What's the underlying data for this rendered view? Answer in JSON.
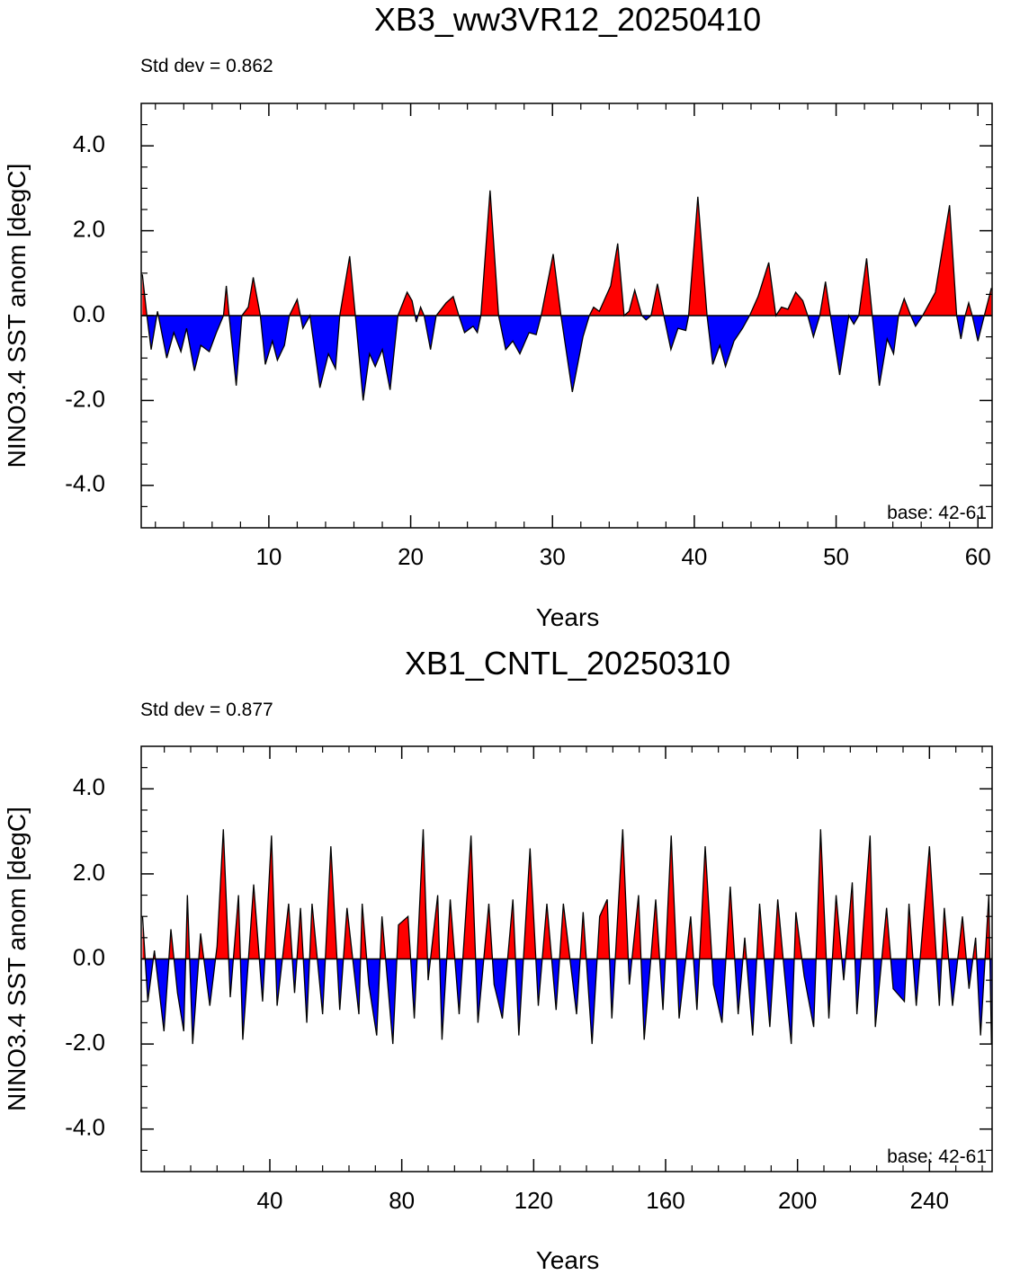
{
  "chart_data": [
    {
      "type": "area",
      "title": "XB3_ww3VR12_20250410",
      "subtitle": "Std dev = 0.862",
      "annotation": "base: 42-61",
      "x_label": "Years",
      "y_label": "NINO3.4 SST anom [degC]",
      "color_above": "#ff0000",
      "color_below": "#0000ff",
      "line_color": "#000000",
      "x": [
        1.08,
        1.4,
        1.7,
        2.15,
        2.8,
        3.3,
        3.8,
        4.2,
        4.75,
        5.2,
        5.8,
        6.3,
        6.8,
        7.0,
        7.2,
        7.7,
        8.1,
        8.55,
        8.9,
        9.4,
        9.75,
        10.25,
        10.6,
        11.1,
        11.45,
        12.0,
        12.4,
        12.9,
        13.6,
        14.2,
        14.7,
        15.0,
        15.7,
        16.1,
        16.65,
        17.1,
        17.5,
        18.0,
        18.55,
        19.1,
        19.75,
        20.1,
        20.4,
        20.7,
        20.95,
        21.4,
        21.8,
        22.5,
        23.0,
        23.4,
        23.8,
        24.4,
        24.7,
        24.95,
        25.6,
        26.2,
        26.7,
        27.2,
        27.7,
        28.35,
        28.85,
        29.2,
        30.05,
        30.6,
        31.4,
        32.15,
        32.6,
        32.9,
        33.3,
        34.1,
        34.6,
        35.05,
        35.4,
        35.8,
        36.3,
        36.6,
        36.95,
        37.4,
        37.85,
        38.35,
        38.85,
        39.4,
        39.6,
        40.25,
        40.9,
        41.3,
        41.8,
        42.2,
        42.8,
        43.4,
        43.9,
        44.5,
        45.25,
        45.75,
        46.15,
        46.6,
        47.15,
        47.65,
        48.0,
        48.4,
        48.85,
        49.25,
        49.6,
        50.25,
        50.9,
        51.25,
        51.6,
        52.15,
        52.55,
        53.05,
        53.6,
        54.05,
        54.4,
        54.8,
        55.2,
        55.6,
        56.1,
        57.0,
        58.0,
        58.5,
        58.8,
        59.1,
        59.35,
        59.6,
        60.0,
        60.45,
        60.95
      ],
      "values": [
        0.97,
        0,
        -0.8,
        0.1,
        -1.0,
        -0.4,
        -0.85,
        -0.3,
        -1.3,
        -0.7,
        -0.85,
        -0.4,
        0,
        0.7,
        0,
        -1.65,
        0,
        0.2,
        0.9,
        0,
        -1.15,
        -0.6,
        -1.05,
        -0.7,
        0,
        0.38,
        -0.3,
        0,
        -1.7,
        -0.9,
        -1.25,
        0,
        1.4,
        0,
        -2.0,
        -0.9,
        -1.2,
        -0.8,
        -1.75,
        0,
        0.55,
        0.35,
        -0.15,
        0.2,
        0,
        -0.8,
        0,
        0.3,
        0.45,
        0,
        -0.4,
        -0.25,
        -0.4,
        0,
        2.95,
        0,
        -0.8,
        -0.6,
        -0.9,
        -0.4,
        -0.45,
        0,
        1.45,
        0,
        -1.8,
        -0.5,
        0,
        0.2,
        0.1,
        0.7,
        1.7,
        0,
        0.1,
        0.6,
        0,
        -0.1,
        0,
        0.75,
        0,
        -0.8,
        -0.3,
        -0.35,
        0,
        2.8,
        0,
        -1.15,
        -0.7,
        -1.2,
        -0.6,
        -0.3,
        0,
        0.45,
        1.25,
        0,
        0.2,
        0.15,
        0.55,
        0.35,
        0,
        -0.5,
        0,
        0.8,
        0,
        -1.4,
        0,
        -0.2,
        0,
        1.35,
        0,
        -1.65,
        -0.55,
        -0.9,
        0,
        0.4,
        0.05,
        -0.25,
        0,
        0.55,
        2.6,
        0,
        -0.55,
        0,
        0.3,
        0,
        -0.6,
        0,
        0.65
      ],
      "xlim": [
        1,
        61
      ],
      "ylim": [
        -5,
        5
      ],
      "xticks": [
        10,
        20,
        30,
        40,
        50,
        60
      ],
      "yticks": [
        {
          "value": -4,
          "label": "-4.0"
        },
        {
          "value": -2,
          "label": "-2.0"
        },
        {
          "value": 0,
          "label": "0.0"
        },
        {
          "value": 2,
          "label": "2.0"
        },
        {
          "value": 4,
          "label": "4.0"
        }
      ],
      "xminorticks": [
        2,
        4,
        6,
        8,
        12,
        14,
        16,
        18,
        22,
        24,
        26,
        28,
        32,
        34,
        36,
        38,
        42,
        44,
        46,
        48,
        52,
        54,
        56,
        58
      ],
      "yminorticks": [
        -4.5,
        -3.5,
        -3,
        -2.5,
        -1.5,
        -1,
        -0.5,
        0.5,
        1,
        1.5,
        2.5,
        3,
        3.5,
        4.5
      ]
    },
    {
      "type": "area",
      "title": "XB1_CNTL_20250310",
      "subtitle": "Std dev = 0.877",
      "annotation": "base: 42-61",
      "x_label": "Years",
      "y_label": "NINO3.4 SST anom [degC]",
      "color_above": "#ff0000",
      "color_below": "#0000ff",
      "line_color": "#000000",
      "x": [
        1.4,
        3,
        5,
        7.9,
        10,
        12,
        13.9,
        15,
        16.6,
        19,
        21.8,
        24,
        25.9,
        28,
        30.5,
        31.8,
        35.1,
        37.8,
        40.5,
        42.2,
        45.7,
        47.5,
        49.3,
        51.2,
        52.8,
        56,
        58.5,
        61.2,
        63.4,
        67,
        68,
        70,
        72.4,
        74,
        77.3,
        79,
        81.9,
        83.8,
        86.5,
        88,
        90.9,
        92.2,
        94.7,
        97.4,
        101,
        103.1,
        106.4,
        108,
        110.5,
        113.7,
        115.5,
        118.9,
        121.4,
        124,
        126.8,
        129,
        133,
        135,
        137.7,
        140,
        142.3,
        143.7,
        147,
        149,
        151.8,
        153.5,
        157,
        159.2,
        161.7,
        164.1,
        167.6,
        169.5,
        172,
        174.5,
        177.1,
        179.6,
        182,
        184,
        186.4,
        188.5,
        191.6,
        194,
        196,
        198.1,
        199.5,
        202,
        204.9,
        207,
        209.5,
        211.7,
        214,
        216.6,
        218,
        222,
        223.6,
        227,
        229,
        232.4,
        233.8,
        236,
        240,
        243,
        244.5,
        247,
        250,
        252,
        254,
        255.5,
        258,
        258.8
      ],
      "values": [
        1.0,
        -1.0,
        0.2,
        -1.7,
        0.7,
        -0.8,
        -1.7,
        1.5,
        -2.0,
        0.6,
        -1.1,
        0.3,
        3.05,
        -0.9,
        1.5,
        -1.9,
        1.75,
        -1.0,
        2.9,
        -1.1,
        1.3,
        -0.8,
        1.2,
        -1.5,
        1.3,
        -1.3,
        2.65,
        -1.2,
        1.2,
        -1.3,
        1.3,
        -0.6,
        -1.8,
        1.0,
        -2.0,
        0.8,
        1.0,
        -1.4,
        3.05,
        -0.5,
        1.5,
        -1.9,
        1.4,
        -1.3,
        2.9,
        -1.5,
        1.3,
        -0.6,
        -1.4,
        1.4,
        -1.8,
        2.6,
        -1.1,
        1.3,
        -1.2,
        1.3,
        -1.3,
        1.1,
        -2.0,
        1.0,
        1.4,
        -1.4,
        3.05,
        -0.6,
        1.5,
        -1.9,
        1.4,
        -1.2,
        2.9,
        -1.4,
        1.0,
        -1.2,
        2.65,
        -0.6,
        -1.5,
        1.7,
        -1.3,
        0.5,
        -1.8,
        1.3,
        -1.6,
        1.4,
        -0.3,
        -2.0,
        1.1,
        -0.4,
        -1.6,
        3.05,
        -1.4,
        1.5,
        -0.5,
        1.8,
        -1.3,
        2.9,
        -1.6,
        1.2,
        -0.7,
        -1.0,
        1.3,
        -1.1,
        2.65,
        -1.1,
        1.2,
        -1.1,
        1.0,
        -0.7,
        0.5,
        -1.8,
        1.5,
        -2.0
      ],
      "xlim": [
        1,
        259
      ],
      "ylim": [
        -5,
        5
      ],
      "xticks": [
        40,
        80,
        120,
        160,
        200,
        240
      ],
      "yticks": [
        {
          "value": -4,
          "label": "-4.0"
        },
        {
          "value": -2,
          "label": "-2.0"
        },
        {
          "value": 0,
          "label": "0.0"
        },
        {
          "value": 2,
          "label": "2.0"
        },
        {
          "value": 4,
          "label": "4.0"
        }
      ],
      "xminorticks": [
        8,
        16,
        24,
        32,
        48,
        56,
        64,
        72,
        88,
        96,
        104,
        112,
        128,
        136,
        144,
        152,
        168,
        176,
        184,
        192,
        208,
        216,
        224,
        232,
        248,
        256
      ],
      "yminorticks": [
        -4.5,
        -3.5,
        -3,
        -2.5,
        -1.5,
        -1,
        -0.5,
        0.5,
        1,
        1.5,
        2.5,
        3,
        3.5,
        4.5
      ]
    }
  ]
}
